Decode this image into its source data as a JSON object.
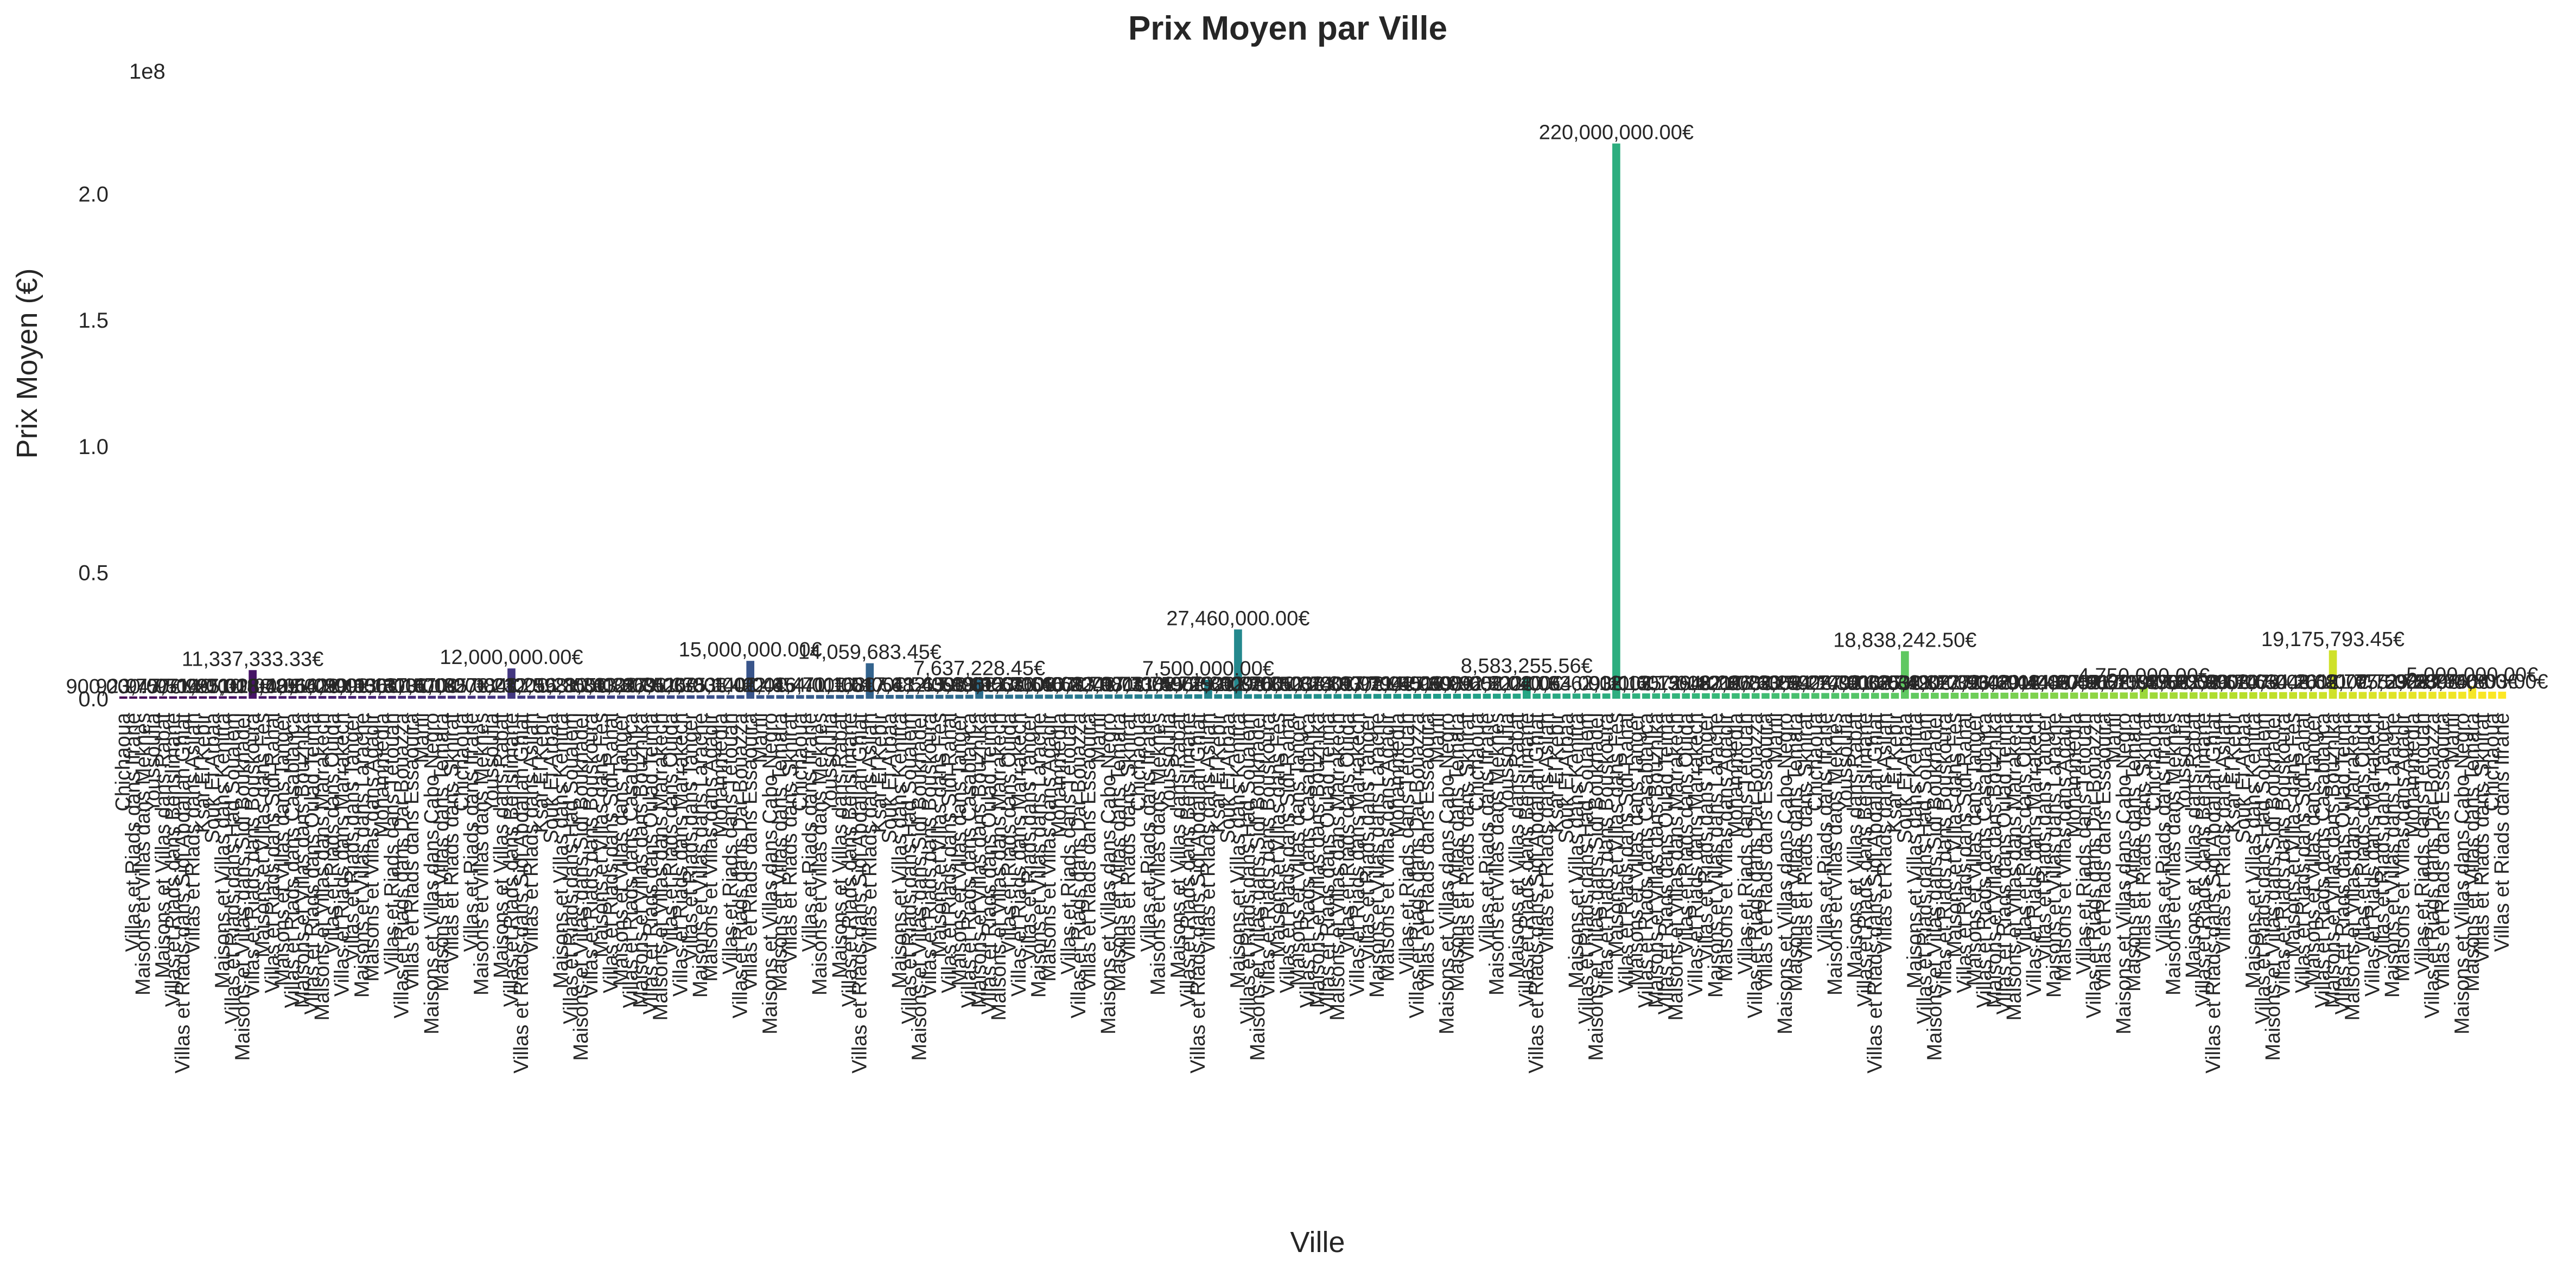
{
  "chart_data": {
    "type": "bar",
    "title": "Prix Moyen par Ville",
    "xlabel": "Ville",
    "ylabel": "Prix Moyen (€)",
    "offset_text": "1e8",
    "ylim": [
      0,
      230000000
    ],
    "yticks": [
      {
        "value": 0,
        "label": "0.0"
      },
      {
        "value": 50000000,
        "label": "0.5"
      },
      {
        "value": 100000000,
        "label": "1.0"
      },
      {
        "value": 150000000,
        "label": "1.5"
      },
      {
        "value": 200000000,
        "label": "2.0"
      }
    ],
    "grid": false,
    "legend": "none",
    "palette": "viridis",
    "n_categories": 240,
    "category_patterns": [
      "Chichaoua",
      "Maisons et Villas dans Cabo Negro",
      "Villas et Riads dans Dar Bouazza",
      "Maisons et Villas dans Agadir",
      "Villas et Riads dans Marrakech",
      "Villas et Riads dans Oulad Teima",
      "Maisons et Villas dans Tanger",
      "Villas et Riads dans Bouskoura",
      "Maisons et Villas dans Kenitra",
      "Villas et Riads dans Asilah",
      "Maisons et Villas dans Rabat",
      "Villas et Riads dans Ifrane",
      "Maisons et Villas dans Temara",
      "Villas et Riads dans Essaouira",
      "Mohammedia",
      "Villas et Riads dans Tanger",
      "Maisons et Villas dans Marrakech",
      "Villas et Riads dans Casablanca",
      "Maisons et Villas dans Fès",
      "Villas et Riads dans Had Soualem",
      "Ksar El Kebir",
      "Villas et Riads dans Benslimane",
      "Maisons et Villas dans Meknès",
      "Villas et Riads dans Skhirat",
      "Martil",
      "Villas et Riads dans Tétouan",
      "Maisons et Villas dans Larache",
      "Villas et Riads dans Oujda",
      "Maisons et Villas dans Bouznika",
      "Villas et Riads dans Sidi Rahal",
      "Maisons et Villas dans Sidi Bouknadel",
      "Souk El Arbaa",
      "Villas et Riads dans Sidi Abdallah Ghiat",
      "Youssoufia"
    ],
    "bar_labels": [
      {
        "index": 13,
        "value": 11337333.33,
        "text": "11,337,333.33€"
      },
      {
        "index": 39,
        "value": 12000000,
        "text": "12,000,000.00€"
      },
      {
        "index": 63,
        "value": 15000000,
        "text": "15,000,000.00€"
      },
      {
        "index": 75,
        "value": 14059683.45,
        "text": "14,059,683.45€"
      },
      {
        "index": 86,
        "value": 7637228.45,
        "text": "7,637,228.45€"
      },
      {
        "index": 109,
        "value": 7500000,
        "text": "7,500,000.00€"
      },
      {
        "index": 112,
        "value": 27460000,
        "text": "27,460,000.00€"
      },
      {
        "index": 141,
        "value": 8583255.56,
        "text": "8,583,255.56€"
      },
      {
        "index": 150,
        "value": 220000000,
        "text": "220,000,000.00€"
      },
      {
        "index": 179,
        "value": 18838242.5,
        "text": "18,838,242.50€"
      },
      {
        "index": 203,
        "value": 4750000,
        "text": "4,750,000.00€"
      },
      {
        "index": 222,
        "value": 19175793.45,
        "text": "19,175,793.45€"
      },
      {
        "index": 236,
        "value": 5000000,
        "text": "5,000,000.00€"
      }
    ]
  }
}
